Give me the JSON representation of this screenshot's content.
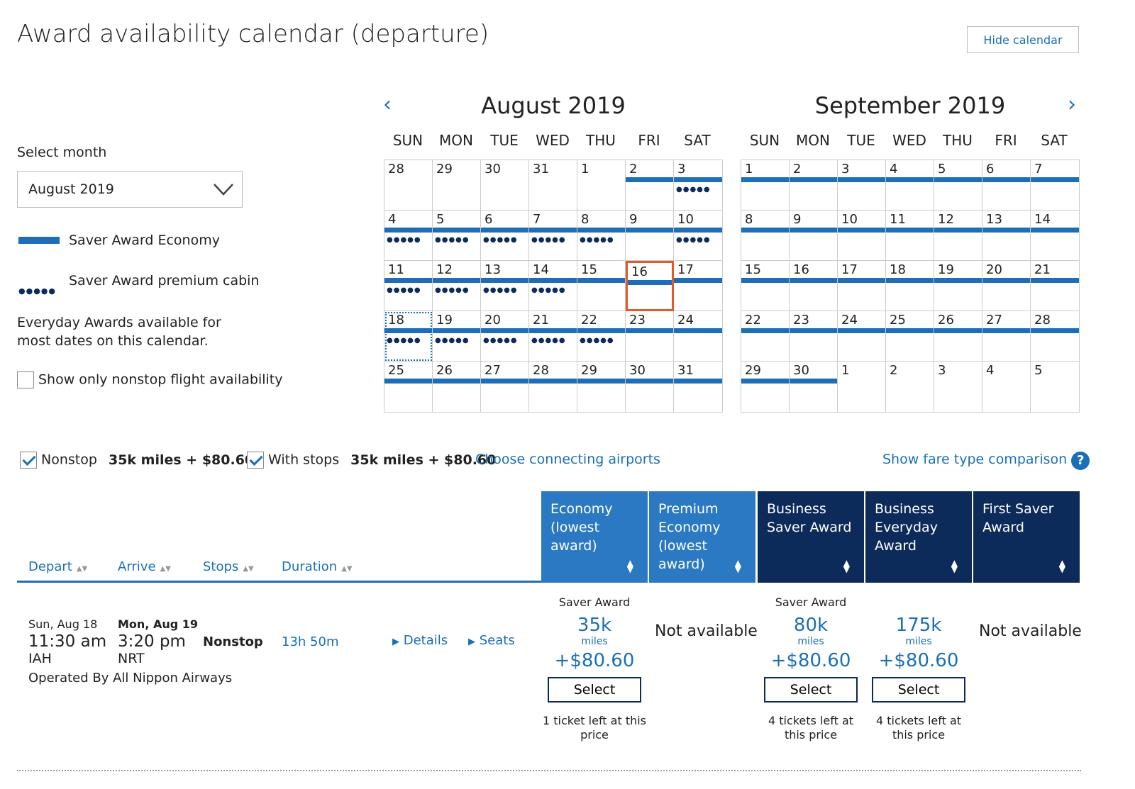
{
  "header": {
    "title": "Award availability calendar (departure)",
    "hide_calendar": "Hide calendar"
  },
  "sidebar": {
    "select_month_label": "Select month",
    "selected_month": "August 2019",
    "legend_economy": "Saver Award Economy",
    "legend_premium": "Saver Award premium cabin",
    "everyday_note": "Everyday Awards available for most dates on this calendar.",
    "nonstop_only_label": "Show only nonstop flight availability"
  },
  "calendar": {
    "weekdays": [
      "SUN",
      "MON",
      "TUE",
      "WED",
      "THU",
      "FRI",
      "SAT"
    ],
    "months": [
      {
        "title": "August 2019",
        "weeks": [
          [
            {
              "d": "28",
              "e": false,
              "p": false
            },
            {
              "d": "29",
              "e": false,
              "p": false
            },
            {
              "d": "30",
              "e": false,
              "p": false
            },
            {
              "d": "31",
              "e": false,
              "p": false
            },
            {
              "d": "1",
              "e": false,
              "p": false
            },
            {
              "d": "2",
              "e": true,
              "p": false
            },
            {
              "d": "3",
              "e": true,
              "p": true
            }
          ],
          [
            {
              "d": "4",
              "e": true,
              "p": true
            },
            {
              "d": "5",
              "e": true,
              "p": true
            },
            {
              "d": "6",
              "e": true,
              "p": true
            },
            {
              "d": "7",
              "e": true,
              "p": true
            },
            {
              "d": "8",
              "e": true,
              "p": true
            },
            {
              "d": "9",
              "e": true,
              "p": false
            },
            {
              "d": "10",
              "e": true,
              "p": true
            }
          ],
          [
            {
              "d": "11",
              "e": true,
              "p": true
            },
            {
              "d": "12",
              "e": true,
              "p": true
            },
            {
              "d": "13",
              "e": true,
              "p": true
            },
            {
              "d": "14",
              "e": true,
              "p": true
            },
            {
              "d": "15",
              "e": true,
              "p": false
            },
            {
              "d": "16",
              "e": true,
              "p": false,
              "selected": true
            },
            {
              "d": "17",
              "e": true,
              "p": false
            }
          ],
          [
            {
              "d": "18",
              "e": true,
              "p": true,
              "today": true
            },
            {
              "d": "19",
              "e": true,
              "p": true
            },
            {
              "d": "20",
              "e": true,
              "p": true
            },
            {
              "d": "21",
              "e": true,
              "p": true
            },
            {
              "d": "22",
              "e": true,
              "p": true
            },
            {
              "d": "23",
              "e": true,
              "p": false
            },
            {
              "d": "24",
              "e": true,
              "p": false
            }
          ],
          [
            {
              "d": "25",
              "e": true,
              "p": false
            },
            {
              "d": "26",
              "e": true,
              "p": false
            },
            {
              "d": "27",
              "e": true,
              "p": false
            },
            {
              "d": "28",
              "e": true,
              "p": false
            },
            {
              "d": "29",
              "e": true,
              "p": false
            },
            {
              "d": "30",
              "e": true,
              "p": false
            },
            {
              "d": "31",
              "e": true,
              "p": false
            }
          ]
        ]
      },
      {
        "title": "September 2019",
        "weeks": [
          [
            {
              "d": "1",
              "e": true,
              "p": false
            },
            {
              "d": "2",
              "e": true,
              "p": false
            },
            {
              "d": "3",
              "e": true,
              "p": false
            },
            {
              "d": "4",
              "e": true,
              "p": false
            },
            {
              "d": "5",
              "e": true,
              "p": false
            },
            {
              "d": "6",
              "e": true,
              "p": false
            },
            {
              "d": "7",
              "e": true,
              "p": false
            }
          ],
          [
            {
              "d": "8",
              "e": true,
              "p": false
            },
            {
              "d": "9",
              "e": true,
              "p": false
            },
            {
              "d": "10",
              "e": true,
              "p": false
            },
            {
              "d": "11",
              "e": true,
              "p": false
            },
            {
              "d": "12",
              "e": true,
              "p": false
            },
            {
              "d": "13",
              "e": true,
              "p": false
            },
            {
              "d": "14",
              "e": true,
              "p": false
            }
          ],
          [
            {
              "d": "15",
              "e": true,
              "p": false
            },
            {
              "d": "16",
              "e": true,
              "p": false
            },
            {
              "d": "17",
              "e": true,
              "p": false
            },
            {
              "d": "18",
              "e": true,
              "p": false
            },
            {
              "d": "19",
              "e": true,
              "p": false
            },
            {
              "d": "20",
              "e": true,
              "p": false
            },
            {
              "d": "21",
              "e": true,
              "p": false
            }
          ],
          [
            {
              "d": "22",
              "e": true,
              "p": false
            },
            {
              "d": "23",
              "e": true,
              "p": false
            },
            {
              "d": "24",
              "e": true,
              "p": false
            },
            {
              "d": "25",
              "e": true,
              "p": false
            },
            {
              "d": "26",
              "e": true,
              "p": false
            },
            {
              "d": "27",
              "e": true,
              "p": false
            },
            {
              "d": "28",
              "e": true,
              "p": false
            }
          ],
          [
            {
              "d": "29",
              "e": true,
              "p": false
            },
            {
              "d": "30",
              "e": true,
              "p": false
            },
            {
              "d": "1",
              "e": false,
              "p": false
            },
            {
              "d": "2",
              "e": false,
              "p": false
            },
            {
              "d": "3",
              "e": false,
              "p": false
            },
            {
              "d": "4",
              "e": false,
              "p": false
            },
            {
              "d": "5",
              "e": false,
              "p": false
            }
          ]
        ]
      }
    ]
  },
  "filters": {
    "nonstop_label": "Nonstop",
    "nonstop_price": "35k miles + $80.60",
    "stops_label": "With stops",
    "stops_price": "35k miles + $80.60",
    "connecting": "Choose connecting airports",
    "compare": "Show fare type comparison",
    "help": "?"
  },
  "columns": {
    "depart": "Depart",
    "arrive": "Arrive",
    "stops": "Stops",
    "duration": "Duration",
    "fares": [
      {
        "label": "Economy (lowest award)",
        "color": "#2a79c2"
      },
      {
        "label": "Premium Economy (lowest award)",
        "color": "#2a79c2"
      },
      {
        "label": "Business Saver Award",
        "color": "#0c2a5a"
      },
      {
        "label": "Business Everyday Award",
        "color": "#0c2a5a"
      },
      {
        "label": "First Saver Award",
        "color": "#0c2a5a"
      }
    ]
  },
  "flight": {
    "depart_date": "Sun, Aug 18",
    "depart_time": "11:30 am",
    "depart_airport": "IAH",
    "arrive_date": "Mon, Aug 19",
    "arrive_time": "3:20 pm",
    "arrive_airport": "NRT",
    "stops": "Nonstop",
    "duration": "13h 50m",
    "operated_by": "Operated By All Nippon Airways",
    "details": "Details",
    "seats": "Seats",
    "economy": {
      "type": "Saver Award",
      "miles": "35k",
      "unit": "miles",
      "tax": "+$80.60",
      "select": "Select",
      "note": "1 ticket left at this price"
    },
    "premium_na": "Not available",
    "business_saver": {
      "type": "Saver Award",
      "miles": "80k",
      "unit": "miles",
      "tax": "+$80.60",
      "select": "Select",
      "note": "4 tickets left at this price"
    },
    "business_everyday": {
      "miles": "175k",
      "unit": "miles",
      "tax": "+$80.60",
      "select": "Select",
      "note": "4 tickets left at this price"
    },
    "first_na": "Not available"
  }
}
